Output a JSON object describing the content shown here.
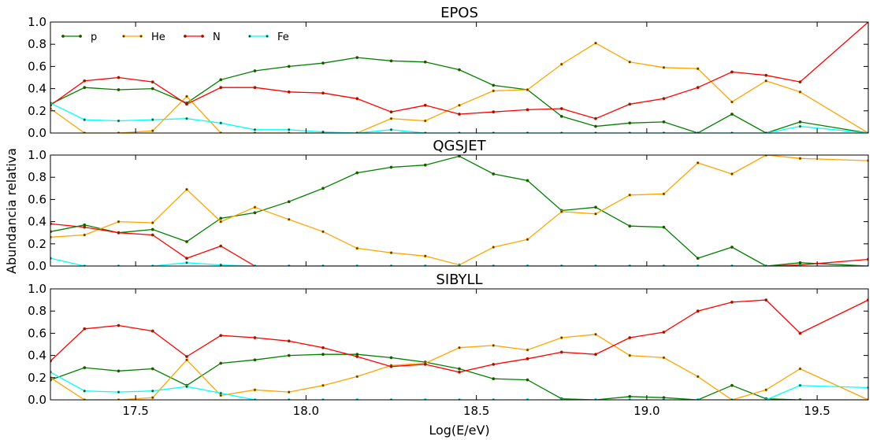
{
  "figure": {
    "xlabel": "Log(E/eV)",
    "ylabel": "Abundancia relativa"
  },
  "chart_data": {
    "type": "line",
    "grid": false,
    "legend": {
      "placement": "top-left",
      "panel": "EPOS",
      "entries": [
        "p",
        "He",
        "N",
        "Fe"
      ]
    },
    "xlim": [
      17.25,
      19.65
    ],
    "ylim": [
      0,
      1
    ],
    "xticks": [
      17.5,
      18.0,
      18.5,
      19.0,
      19.5
    ],
    "xtick_labels": [
      "17.5",
      "18.0",
      "18.5",
      "19.0",
      "19.5"
    ],
    "yticks": [
      0.0,
      0.2,
      0.4,
      0.6,
      0.8,
      1.0
    ],
    "ytick_labels": [
      "0.0",
      "0.2",
      "0.4",
      "0.6",
      "0.8",
      "1.0"
    ],
    "x": [
      17.25,
      17.35,
      17.45,
      17.55,
      17.65,
      17.75,
      17.85,
      17.95,
      18.05,
      18.15,
      18.25,
      18.35,
      18.45,
      18.55,
      18.65,
      18.75,
      18.85,
      18.95,
      19.05,
      19.15,
      19.25,
      19.35,
      19.45,
      19.65
    ],
    "colors": {
      "p": "#008000",
      "He": "#FFA500",
      "N": "#FF0000",
      "Fe": "#00FFFF"
    },
    "panels": [
      {
        "title": "EPOS",
        "series": [
          {
            "name": "p",
            "values": [
              0.26,
              0.41,
              0.39,
              0.4,
              0.27,
              0.48,
              0.56,
              0.6,
              0.63,
              0.68,
              0.65,
              0.64,
              0.57,
              0.43,
              0.39,
              0.15,
              0.06,
              0.09,
              0.1,
              0.0,
              0.17,
              0.0,
              0.1,
              0.0
            ]
          },
          {
            "name": "He",
            "values": [
              0.22,
              0.0,
              0.0,
              0.02,
              0.33,
              0.0,
              0.0,
              0.0,
              0.0,
              0.0,
              0.13,
              0.11,
              0.25,
              0.38,
              0.39,
              0.62,
              0.81,
              0.64,
              0.59,
              0.58,
              0.28,
              0.47,
              0.37,
              0.0
            ]
          },
          {
            "name": "N",
            "values": [
              0.25,
              0.47,
              0.5,
              0.46,
              0.26,
              0.41,
              0.41,
              0.37,
              0.36,
              0.31,
              0.19,
              0.25,
              0.17,
              0.19,
              0.21,
              0.22,
              0.13,
              0.26,
              0.31,
              0.41,
              0.55,
              0.52,
              0.46,
              1.0
            ]
          },
          {
            "name": "Fe",
            "values": [
              0.27,
              0.12,
              0.11,
              0.12,
              0.13,
              0.09,
              0.03,
              0.03,
              0.01,
              0.0,
              0.03,
              0.0,
              0.0,
              0.0,
              0.0,
              0.0,
              0.0,
              0.0,
              0.0,
              0.0,
              0.0,
              0.0,
              0.06,
              0.0
            ]
          }
        ]
      },
      {
        "title": "QGSJET",
        "series": [
          {
            "name": "p",
            "values": [
              0.31,
              0.37,
              0.3,
              0.33,
              0.22,
              0.43,
              0.48,
              0.58,
              0.7,
              0.84,
              0.89,
              0.91,
              0.99,
              0.83,
              0.77,
              0.5,
              0.53,
              0.36,
              0.35,
              0.07,
              0.17,
              0.0,
              0.03,
              0.0
            ]
          },
          {
            "name": "He",
            "values": [
              0.26,
              0.28,
              0.4,
              0.39,
              0.69,
              0.4,
              0.53,
              0.42,
              0.31,
              0.16,
              0.12,
              0.09,
              0.01,
              0.17,
              0.24,
              0.49,
              0.47,
              0.64,
              0.65,
              0.93,
              0.83,
              1.0,
              0.97,
              0.95
            ]
          },
          {
            "name": "N",
            "values": [
              0.38,
              0.35,
              0.3,
              0.28,
              0.07,
              0.18,
              0.0,
              0.0,
              0.0,
              0.0,
              0.0,
              0.0,
              0.0,
              0.0,
              0.0,
              0.0,
              0.0,
              0.0,
              0.0,
              0.0,
              0.0,
              0.0,
              0.01,
              0.06
            ]
          },
          {
            "name": "Fe",
            "values": [
              0.07,
              0.0,
              0.0,
              0.0,
              0.03,
              0.01,
              0.0,
              0.0,
              0.0,
              0.0,
              0.0,
              0.0,
              0.0,
              0.0,
              0.0,
              0.0,
              0.0,
              0.0,
              0.0,
              0.0,
              0.0,
              0.0,
              0.0,
              0.0
            ]
          }
        ]
      },
      {
        "title": "SIBYLL",
        "series": [
          {
            "name": "p",
            "values": [
              0.18,
              0.29,
              0.26,
              0.28,
              0.13,
              0.33,
              0.36,
              0.4,
              0.41,
              0.41,
              0.38,
              0.34,
              0.28,
              0.19,
              0.18,
              0.01,
              0.0,
              0.03,
              0.02,
              0.0,
              0.13,
              0.01,
              0.0,
              0.0
            ]
          },
          {
            "name": "He",
            "values": [
              0.2,
              0.0,
              0.0,
              0.02,
              0.36,
              0.04,
              0.09,
              0.07,
              0.13,
              0.21,
              0.31,
              0.33,
              0.47,
              0.49,
              0.45,
              0.56,
              0.59,
              0.4,
              0.38,
              0.21,
              0.0,
              0.09,
              0.28,
              0.0
            ]
          },
          {
            "name": "N",
            "values": [
              0.35,
              0.64,
              0.67,
              0.62,
              0.39,
              0.58,
              0.56,
              0.53,
              0.47,
              0.39,
              0.3,
              0.32,
              0.25,
              0.32,
              0.37,
              0.43,
              0.41,
              0.56,
              0.61,
              0.8,
              0.88,
              0.9,
              0.6,
              0.9
            ]
          },
          {
            "name": "Fe",
            "values": [
              0.25,
              0.08,
              0.07,
              0.08,
              0.12,
              0.06,
              0.0,
              0.0,
              0.0,
              0.0,
              0.0,
              0.0,
              0.0,
              0.0,
              0.0,
              0.0,
              0.0,
              0.0,
              0.0,
              0.0,
              0.0,
              0.0,
              0.13,
              0.11
            ]
          }
        ]
      }
    ]
  }
}
